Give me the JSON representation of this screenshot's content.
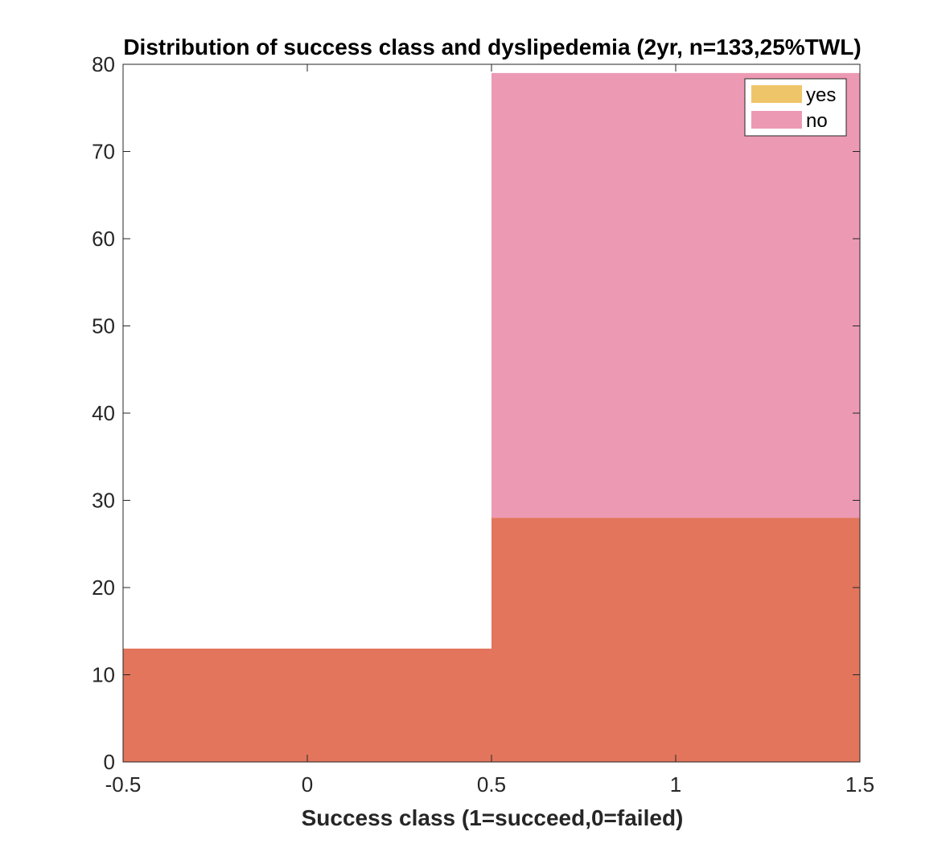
{
  "chart_data": {
    "type": "bar",
    "title": "Distribution of success class and dyslipedemia (2yr, n=133,25%TWL)",
    "xlabel": "Success class (1=succeed,0=failed)",
    "ylabel": "",
    "xlim": [
      -0.5,
      1.5
    ],
    "ylim": [
      0,
      80
    ],
    "xticks": [
      -0.5,
      0,
      0.5,
      1,
      1.5
    ],
    "yticks": [
      0,
      10,
      20,
      30,
      40,
      50,
      60,
      70,
      80
    ],
    "bin_edges": [
      -0.5,
      0.5,
      1.5
    ],
    "overlay": true,
    "series": [
      {
        "name": "yes",
        "values": [
          13,
          28
        ],
        "color": "#EDC261",
        "opacity": 0.95
      },
      {
        "name": "no",
        "values": [
          13,
          79
        ],
        "color": "#E6779B",
        "opacity": 0.75
      }
    ],
    "overlap_color": "#E2755C",
    "legend_position": "top-right",
    "grid": false
  }
}
